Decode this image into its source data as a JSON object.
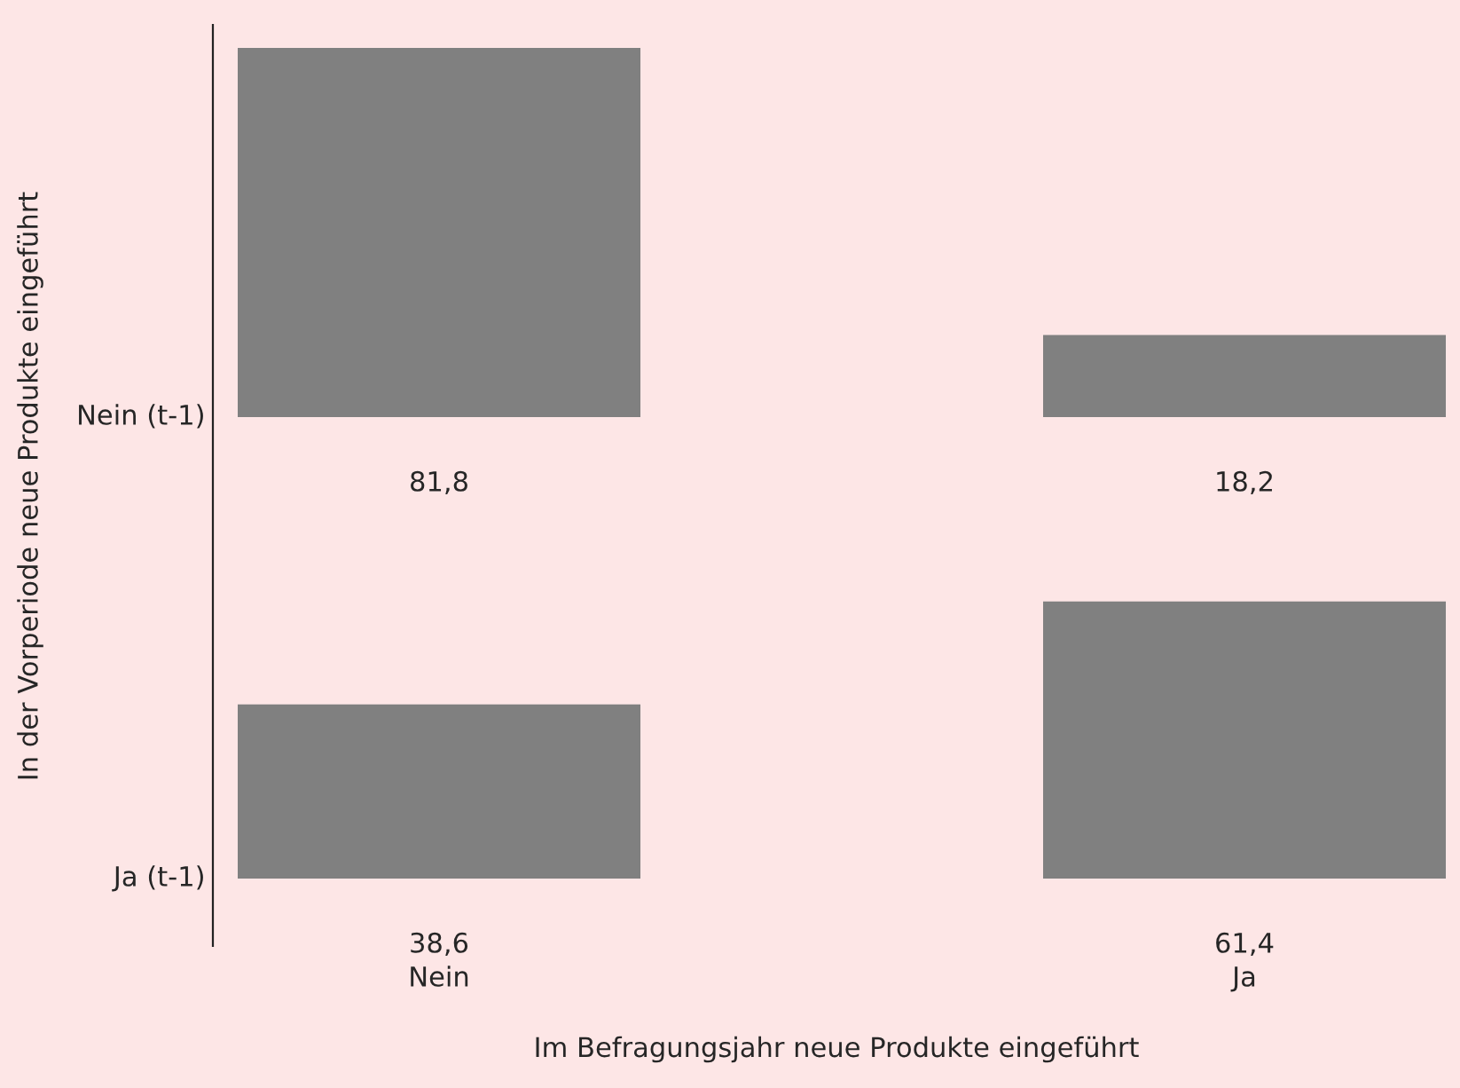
{
  "chart_data": [
    {
      "type": "bar",
      "categories": [
        null,
        null
      ],
      "values": [
        81.8,
        18.2
      ],
      "ylabel": "Nein (t-1)",
      "data_labels": true,
      "value_labels": [
        "81,8",
        "18,2"
      ],
      "color": "#808080",
      "tick_labels": "y",
      "annotations": [
        "In der Vorperiode neue Produkte eingeführt"
      ]
    },
    {
      "type": "bar",
      "categories": [
        "Nein",
        "Ja"
      ],
      "values": [
        38.6,
        61.4
      ],
      "ylabel": "Ja (t-1)",
      "data_labels": true,
      "value_labels": [
        "38,6",
        "61,4"
      ],
      "color": "#808080",
      "xlabel": "Im Befragungsjahr neue Produkte eingeführt"
    }
  ]
}
